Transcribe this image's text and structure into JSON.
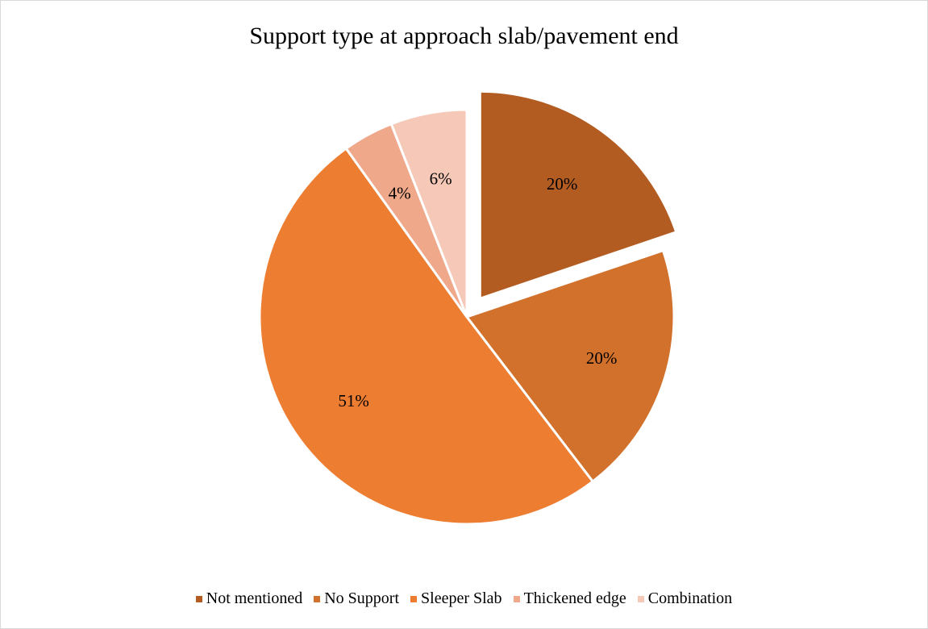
{
  "chart_data": {
    "type": "pie",
    "title": "Support type at approach slab/pavement end",
    "start_angle_deg": 0,
    "direction": "clockwise",
    "slices": [
      {
        "name": "Not mentioned",
        "value": 20,
        "label": "20%",
        "color": "#b35c22",
        "exploded": true
      },
      {
        "name": "No Support",
        "value": 20,
        "label": "20%",
        "color": "#d2712c",
        "exploded": false
      },
      {
        "name": "Sleeper Slab",
        "value": 51,
        "label": "51%",
        "color": "#ed7d31",
        "exploded": false
      },
      {
        "name": "Thickened edge",
        "value": 4,
        "label": "4%",
        "color": "#f0a88b",
        "exploded": false
      },
      {
        "name": "Combination",
        "value": 6,
        "label": "6%",
        "color": "#f5c8b8",
        "exploded": false
      }
    ],
    "legend_position": "bottom"
  }
}
